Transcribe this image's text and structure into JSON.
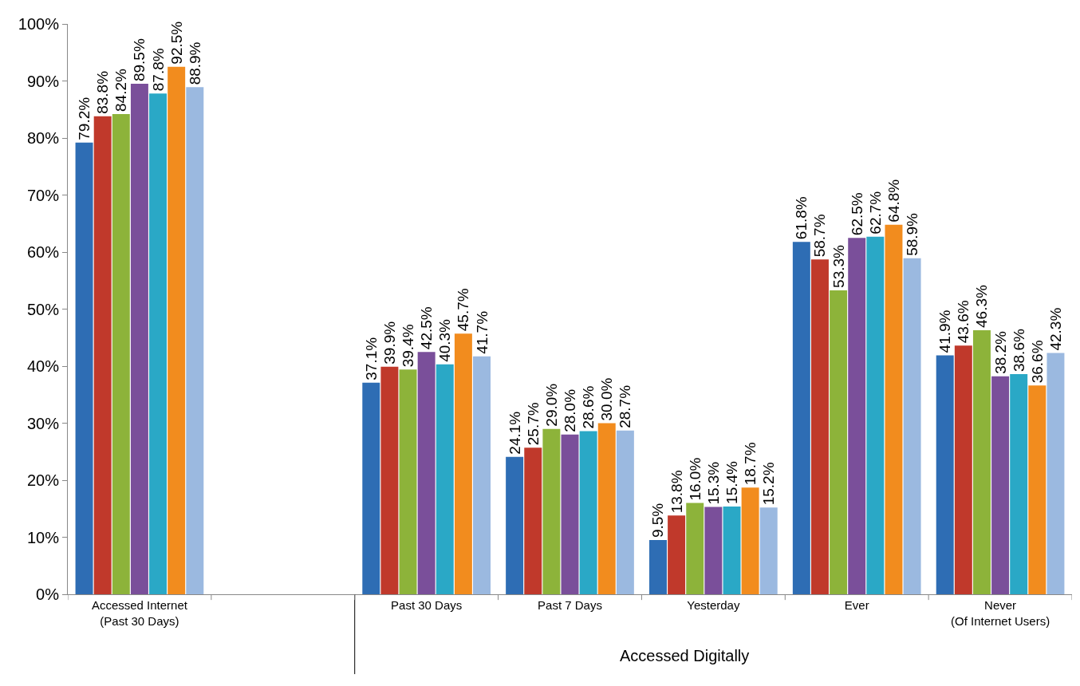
{
  "chart_data": {
    "type": "bar",
    "categories": [
      "Accessed Internet\n(Past 30 Days)",
      null,
      "Past 30 Days",
      "Past 7 Days",
      "Yesterday",
      "Ever",
      "Never\n(Of Internet Users)"
    ],
    "series": [
      {
        "color": "#2e6db4",
        "values": [
          79.2,
          null,
          37.1,
          24.1,
          9.5,
          61.8,
          41.9
        ],
        "value_labels": [
          "79.2%",
          null,
          "37.1%",
          "24.1%",
          "9.5%",
          "61.8%",
          "41.9%"
        ]
      },
      {
        "color": "#c0392b",
        "values": [
          83.8,
          null,
          39.9,
          25.7,
          13.8,
          58.7,
          43.6
        ],
        "value_labels": [
          "83.8%",
          null,
          "39.9%",
          "25.7%",
          "13.8%",
          "58.7%",
          "43.6%"
        ]
      },
      {
        "color": "#8db33a",
        "values": [
          84.2,
          null,
          39.4,
          29.0,
          16.0,
          53.3,
          46.3
        ],
        "value_labels": [
          "84.2%",
          null,
          "39.4%",
          "29.0%",
          "16.0%",
          "53.3%",
          "46.3%"
        ]
      },
      {
        "color": "#7a4f9a",
        "values": [
          89.5,
          null,
          42.5,
          28.0,
          15.3,
          62.5,
          38.2
        ],
        "value_labels": [
          "89.5%",
          null,
          "42.5%",
          "28.0%",
          "15.3%",
          "62.5%",
          "38.2%"
        ]
      },
      {
        "color": "#2aa8c6",
        "values": [
          87.8,
          null,
          40.3,
          28.6,
          15.4,
          62.7,
          38.6
        ],
        "value_labels": [
          "87.8%",
          null,
          "40.3%",
          "28.6%",
          "15.4%",
          "62.7%",
          "38.6%"
        ]
      },
      {
        "color": "#f28c1e",
        "values": [
          92.5,
          null,
          45.7,
          30.0,
          18.7,
          64.8,
          36.6
        ],
        "value_labels": [
          "92.5%",
          null,
          "45.7%",
          "30.0%",
          "18.7%",
          "64.8%",
          "36.6%"
        ]
      },
      {
        "color": "#9bb9e0",
        "values": [
          88.9,
          null,
          41.7,
          28.7,
          15.2,
          58.9,
          42.3
        ],
        "value_labels": [
          "88.9%",
          null,
          "41.7%",
          "28.7%",
          "15.2%",
          "58.9%",
          "42.3%"
        ]
      }
    ],
    "ylim": [
      0,
      100
    ],
    "yticks": [
      {
        "value": 0,
        "label": "0%"
      },
      {
        "value": 10,
        "label": "10%"
      },
      {
        "value": 20,
        "label": "20%"
      },
      {
        "value": 30,
        "label": "30%"
      },
      {
        "value": 40,
        "label": "40%"
      },
      {
        "value": 50,
        "label": "50%"
      },
      {
        "value": 60,
        "label": "60%"
      },
      {
        "value": 70,
        "label": "70%"
      },
      {
        "value": 80,
        "label": "80%"
      },
      {
        "value": 90,
        "label": "90%"
      },
      {
        "value": 100,
        "label": "100%"
      }
    ],
    "grid": false,
    "legend": false,
    "annotations": [
      "Accessed Digitally"
    ]
  }
}
